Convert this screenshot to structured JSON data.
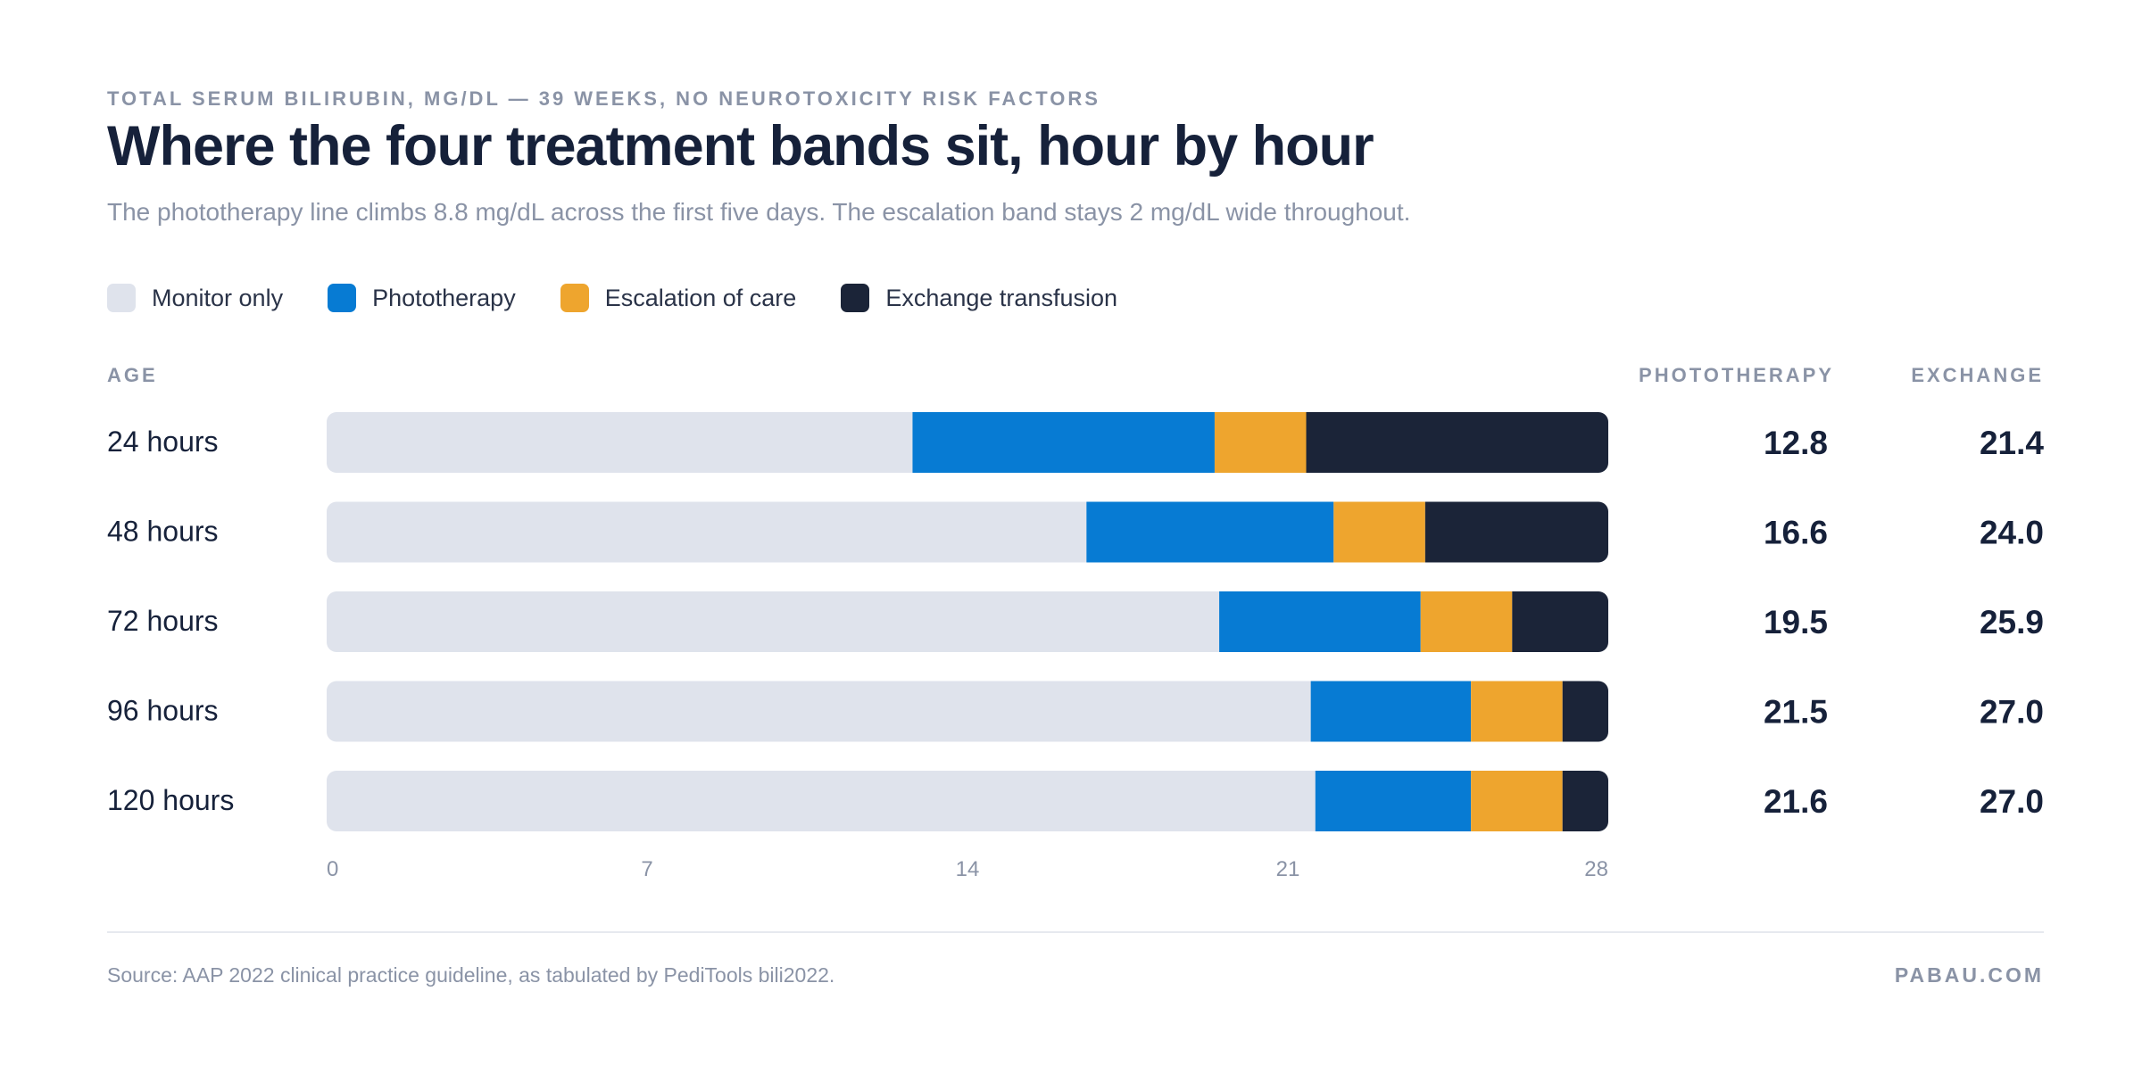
{
  "header": {
    "eyebrow": "TOTAL SERUM BILIRUBIN, MG/DL — 39 WEEKS, NO NEUROTOXICITY RISK FACTORS",
    "title": "Where the four treatment bands sit, hour by hour",
    "subtitle": "The phototherapy line climbs 8.8 mg/dL across the first five days. The escalation band stays 2 mg/dL wide throughout."
  },
  "legend": [
    {
      "label": "Monitor only",
      "color": "#dfe3ec"
    },
    {
      "label": "Phototherapy",
      "color": "#077bd3"
    },
    {
      "label": "Escalation of care",
      "color": "#eea52e"
    },
    {
      "label": "Exchange transfusion",
      "color": "#1b2438"
    }
  ],
  "columns": {
    "age": "AGE",
    "phototherapy": "PHOTOTHERAPY",
    "exchange": "EXCHANGE"
  },
  "chart_data": {
    "type": "bar",
    "orientation": "horizontal",
    "stacked": true,
    "categories": [
      "24 hours",
      "48 hours",
      "72 hours",
      "96 hours",
      "120 hours"
    ],
    "phototherapy_threshold": [
      12.8,
      16.6,
      19.5,
      21.5,
      21.6
    ],
    "escalation_threshold": [
      19.4,
      22.0,
      23.9,
      25.0,
      25.0
    ],
    "exchange_threshold": [
      21.4,
      24.0,
      25.9,
      27.0,
      27.0
    ],
    "phototherapy_display": [
      "12.8",
      "16.6",
      "19.5",
      "21.5",
      "21.6"
    ],
    "exchange_display": [
      "21.4",
      "24.0",
      "25.9",
      "27.0",
      "27.0"
    ],
    "xlim": [
      0,
      28
    ],
    "xticks": [
      "0",
      "7",
      "14",
      "21",
      "28"
    ],
    "grid": false,
    "legend_position": "top-left"
  },
  "footer": {
    "source": "Source: AAP 2022 clinical practice guideline, as tabulated by PediTools bili2022.",
    "brand": "PABAU.COM"
  }
}
